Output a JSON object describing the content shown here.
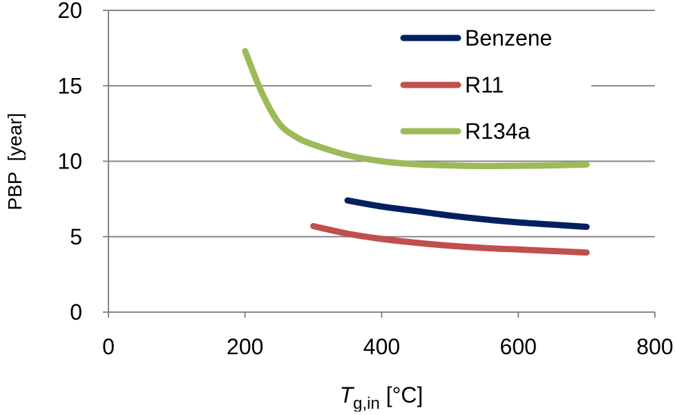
{
  "chart_data": {
    "type": "line",
    "xlabel": {
      "main": "T",
      "subscript": "g,in",
      "unit": " [°C]"
    },
    "ylabel": "PBP  [year]",
    "xlim": [
      0,
      800
    ],
    "ylim": [
      0,
      20
    ],
    "xticks": [
      0,
      200,
      400,
      600,
      800
    ],
    "yticks": [
      0,
      5,
      10,
      15,
      20
    ],
    "xtick_labels": [
      "0",
      "200",
      "400",
      "600",
      "800"
    ],
    "ytick_labels": [
      "0",
      "5",
      "10",
      "15",
      "20"
    ],
    "grid": "horizontal",
    "legend_position": "top-right",
    "series": [
      {
        "name": "Benzene",
        "color": "#002060",
        "x": [
          350,
          400,
          450,
          500,
          550,
          600,
          650,
          700
        ],
        "y": [
          7.4,
          7.0,
          6.7,
          6.4,
          6.15,
          5.95,
          5.8,
          5.65
        ]
      },
      {
        "name": "R11",
        "color": "#C0504D",
        "x": [
          300,
          350,
          400,
          450,
          500,
          550,
          600,
          650,
          700
        ],
        "y": [
          5.7,
          5.2,
          4.85,
          4.6,
          4.4,
          4.25,
          4.15,
          4.05,
          3.95
        ]
      },
      {
        "name": "R134a",
        "color": "#9BBB59",
        "x": [
          200,
          225,
          250,
          275,
          300,
          350,
          400,
          450,
          500,
          550,
          600,
          650,
          700
        ],
        "y": [
          17.3,
          14.5,
          12.5,
          11.6,
          11.1,
          10.4,
          10.0,
          9.8,
          9.72,
          9.68,
          9.7,
          9.72,
          9.78
        ]
      }
    ]
  }
}
